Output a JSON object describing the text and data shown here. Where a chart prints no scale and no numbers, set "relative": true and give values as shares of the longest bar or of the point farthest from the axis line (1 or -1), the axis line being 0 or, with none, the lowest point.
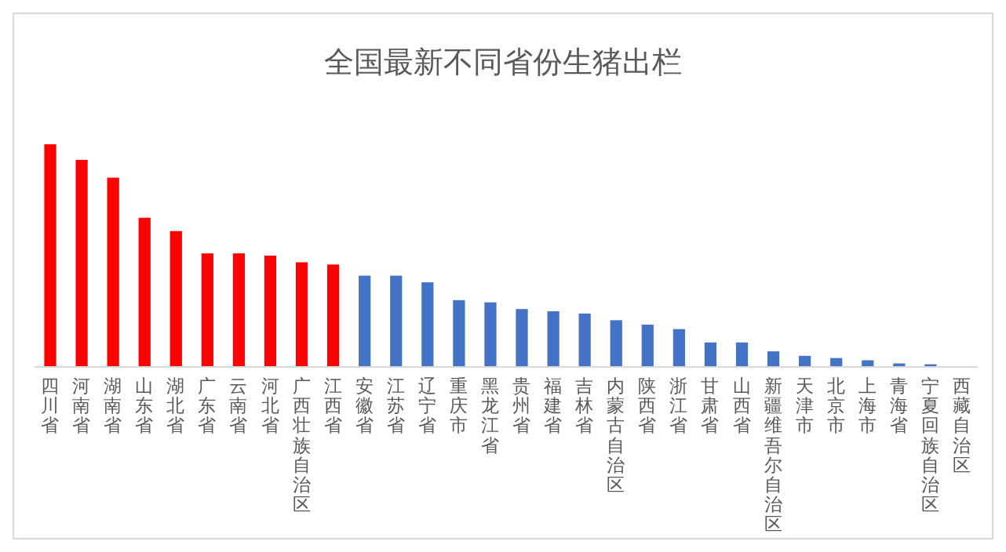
{
  "chart_data": {
    "type": "bar",
    "title": "全国最新不同省份生猪出栏",
    "relative": true,
    "categories": [
      "四川省",
      "河南省",
      "湖南省",
      "山东省",
      "湖北省",
      "广东省",
      "云南省",
      "河北省",
      "广西壮族自治区",
      "江西省",
      "安徽省",
      "江苏省",
      "辽宁省",
      "重庆市",
      "黑龙江省",
      "贵州省",
      "福建省",
      "吉林省",
      "内蒙古自治区",
      "陕西省",
      "浙江省",
      "甘肃省",
      "山西省",
      "新疆维吾尔自治区",
      "天津市",
      "北京市",
      "上海市",
      "青海省",
      "宁夏回族自治区",
      "西藏自治区"
    ],
    "values": [
      1,
      0.93,
      0.85,
      0.67,
      0.61,
      0.51,
      0.51,
      0.5,
      0.47,
      0.46,
      0.41,
      0.41,
      0.38,
      0.3,
      0.29,
      0.26,
      0.25,
      0.24,
      0.21,
      0.19,
      0.17,
      0.11,
      0.11,
      0.07,
      0.05,
      0.04,
      0.03,
      0.016,
      0.012,
      null
    ],
    "colors": [
      "#ff0000",
      "#ff0000",
      "#ff0000",
      "#ff0000",
      "#ff0000",
      "#ff0000",
      "#ff0000",
      "#ff0000",
      "#ff0000",
      "#ff0000",
      "#4472c4",
      "#4472c4",
      "#4472c4",
      "#4472c4",
      "#4472c4",
      "#4472c4",
      "#4472c4",
      "#4472c4",
      "#4472c4",
      "#4472c4",
      "#4472c4",
      "#4472c4",
      "#4472c4",
      "#4472c4",
      "#4472c4",
      "#4472c4",
      "#4472c4",
      "#4472c4",
      "#4472c4",
      null
    ]
  }
}
